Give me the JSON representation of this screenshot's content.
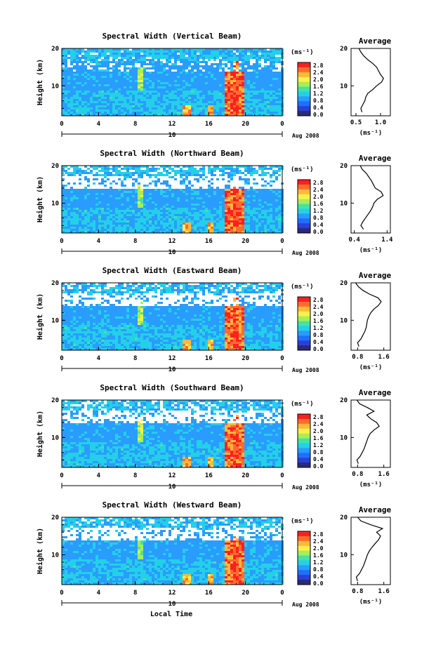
{
  "chart_data": {
    "type": "heatmap",
    "xlabel": "Local Time",
    "date_label": "Aug 2008",
    "day_marker": "10",
    "x_ticks": [
      "0",
      "4",
      "8",
      "12",
      "16",
      "20",
      "0"
    ],
    "x_range": [
      0,
      24
    ],
    "y_ticks": [
      "20",
      "10"
    ],
    "y_range": [
      2,
      20
    ],
    "ylabel": "Height (km)",
    "colorbar": {
      "unit": "(ms⁻¹)",
      "ticks": [
        "2.8",
        "2.4",
        "2.0",
        "1.6",
        "1.2",
        "0.8",
        "0.4",
        "0.0"
      ],
      "range": [
        0.0,
        2.8
      ],
      "colors": [
        "#2a2a7a",
        "#2b40d6",
        "#1f6fff",
        "#2a9cff",
        "#23d0e8",
        "#45e2a8",
        "#a6ef57",
        "#fff04a",
        "#ffb83a",
        "#ff6b2f",
        "#ff2020"
      ]
    },
    "panels": [
      {
        "title": "Spectral Width (Vertical Beam)",
        "avg_title": "Average",
        "avg_xticks": [
          "0.5",
          "1.0"
        ],
        "avg_xrange": [
          0.4,
          1.2
        ],
        "avg_xlabel": "(ms⁻¹)",
        "avg_profile": {
          "height": [
            3,
            4,
            5,
            6,
            7,
            8,
            9,
            10,
            11,
            12,
            13,
            14,
            15,
            16,
            17,
            18,
            19,
            20
          ],
          "width": [
            0.62,
            0.6,
            0.64,
            0.68,
            0.7,
            0.74,
            0.84,
            0.92,
            1.02,
            1.06,
            1.0,
            0.96,
            0.92,
            0.84,
            0.74,
            0.66,
            0.6,
            0.56
          ]
        }
      },
      {
        "title": "Spectral Width (Northward Beam)",
        "avg_title": "Average",
        "avg_xticks": [
          "0.4",
          "1.4"
        ],
        "avg_xrange": [
          0.3,
          1.5
        ],
        "avg_xlabel": "(ms⁻¹)",
        "avg_profile": {
          "height": [
            3,
            4,
            5,
            6,
            7,
            8,
            9,
            10,
            11,
            12,
            13,
            14,
            15,
            16,
            17,
            18,
            19,
            20
          ],
          "width": [
            0.68,
            0.6,
            0.66,
            0.74,
            0.82,
            0.9,
            0.96,
            1.0,
            1.1,
            1.28,
            1.22,
            1.04,
            0.98,
            0.92,
            0.84,
            0.76,
            0.64,
            0.58
          ]
        }
      },
      {
        "title": "Spectral Width (Eastward Beam)",
        "avg_title": "Average",
        "avg_xticks": [
          "0.8",
          "1.6"
        ],
        "avg_xrange": [
          0.6,
          1.8
        ],
        "avg_xlabel": "(ms⁻¹)",
        "avg_profile": {
          "height": [
            3,
            4,
            5,
            6,
            7,
            8,
            9,
            10,
            11,
            12,
            13,
            14,
            15,
            16,
            17,
            18,
            19,
            20
          ],
          "width": [
            0.84,
            0.8,
            0.9,
            0.96,
            1.02,
            1.06,
            1.08,
            1.1,
            1.14,
            1.2,
            1.3,
            1.44,
            1.52,
            1.42,
            1.16,
            0.96,
            0.82,
            0.74
          ]
        }
      },
      {
        "title": "Spectral Width (Southward Beam)",
        "avg_title": "Average",
        "avg_xticks": [
          "0.8",
          "1.6"
        ],
        "avg_xrange": [
          0.6,
          1.8
        ],
        "avg_xlabel": "(ms⁻¹)",
        "avg_profile": {
          "height": [
            3,
            4,
            5,
            6,
            7,
            8,
            9,
            10,
            11,
            12,
            13,
            14,
            15,
            16,
            17,
            18,
            19,
            20
          ],
          "width": [
            0.82,
            0.78,
            0.88,
            0.94,
            1.0,
            1.04,
            1.08,
            1.12,
            1.18,
            1.3,
            1.46,
            1.38,
            1.2,
            1.08,
            1.3,
            1.1,
            0.86,
            0.78
          ]
        }
      },
      {
        "title": "Spectral Width (Westward Beam)",
        "avg_title": "Average",
        "avg_xticks": [
          "0.8",
          "1.6"
        ],
        "avg_xrange": [
          0.6,
          1.8
        ],
        "avg_xlabel": "(ms⁻¹)",
        "avg_profile": {
          "height": [
            3,
            4,
            5,
            6,
            7,
            8,
            9,
            10,
            11,
            12,
            13,
            14,
            15,
            16,
            17,
            18,
            19,
            20
          ],
          "width": [
            0.8,
            0.76,
            0.86,
            0.92,
            0.98,
            1.02,
            1.06,
            1.1,
            1.16,
            1.24,
            1.34,
            1.44,
            1.5,
            1.38,
            1.56,
            1.2,
            0.9,
            0.8
          ]
        }
      }
    ]
  }
}
